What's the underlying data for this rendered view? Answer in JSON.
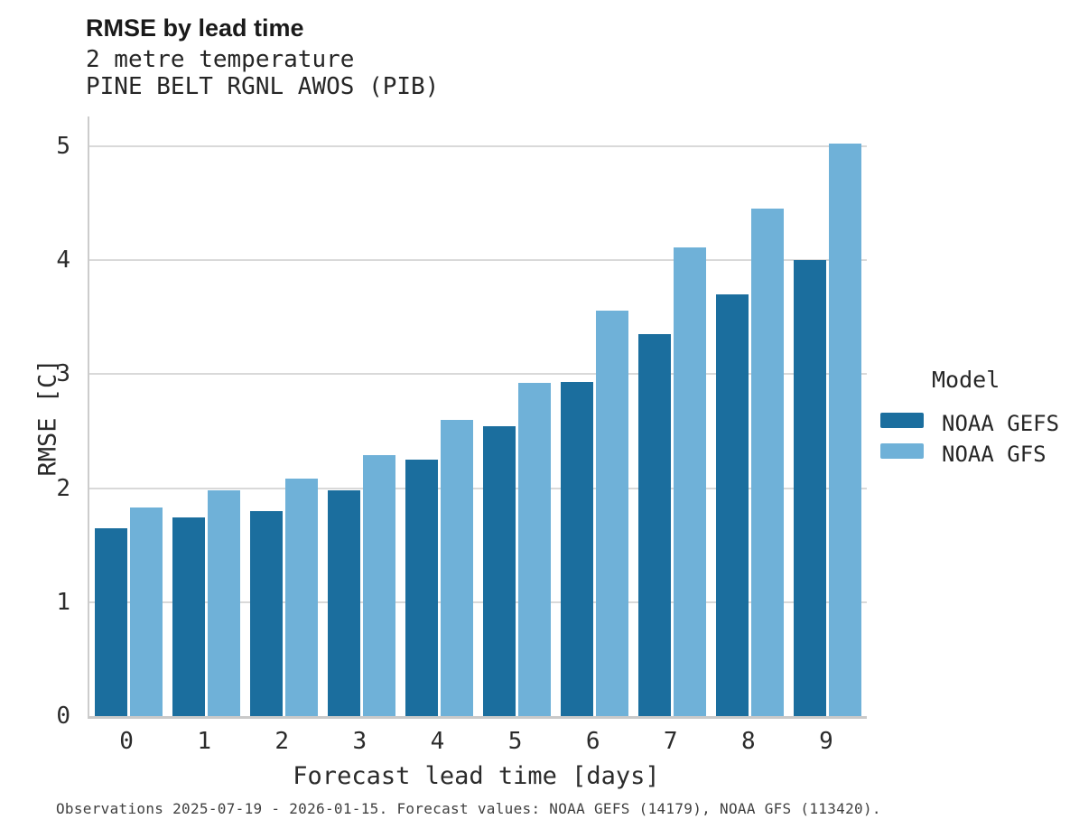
{
  "header": {
    "title": "RMSE by lead time",
    "subtitle_variable": "2 metre temperature",
    "subtitle_station": "PINE BELT RGNL AWOS (PIB)"
  },
  "caption": "Observations 2025-07-19 - 2026-01-15. Forecast values: NOAA GEFS (14179), NOAA GFS (113420).",
  "legend": {
    "title": "Model"
  },
  "colors": {
    "gefs_dark_blue": "#1B6E9E",
    "gfs_light_blue": "#6FB1D8",
    "gridline": "#d9d9d9",
    "axis": "#cccccc"
  },
  "chart_data": {
    "type": "bar",
    "categories": [
      "0",
      "1",
      "2",
      "3",
      "4",
      "5",
      "6",
      "7",
      "8",
      "9"
    ],
    "series": [
      {
        "name": "NOAA GEFS",
        "color": "#1B6E9E",
        "values": [
          1.65,
          1.74,
          1.8,
          1.98,
          2.25,
          2.54,
          2.93,
          3.35,
          3.7,
          4.0
        ]
      },
      {
        "name": "NOAA GFS",
        "color": "#6FB1D8",
        "values": [
          1.83,
          1.98,
          2.08,
          2.29,
          2.6,
          2.92,
          3.56,
          4.11,
          4.45,
          5.02
        ]
      }
    ],
    "title": "RMSE by lead time",
    "subtitle": "2 metre temperature — PINE BELT RGNL AWOS (PIB)",
    "xlabel": "Forecast lead time [days]",
    "ylabel": "RMSE [C]",
    "ylim": [
      0,
      5.26
    ],
    "yticks": [
      0,
      1,
      2,
      3,
      4,
      5
    ],
    "grid": true,
    "legend_title": "Model",
    "legend_position": "right"
  }
}
